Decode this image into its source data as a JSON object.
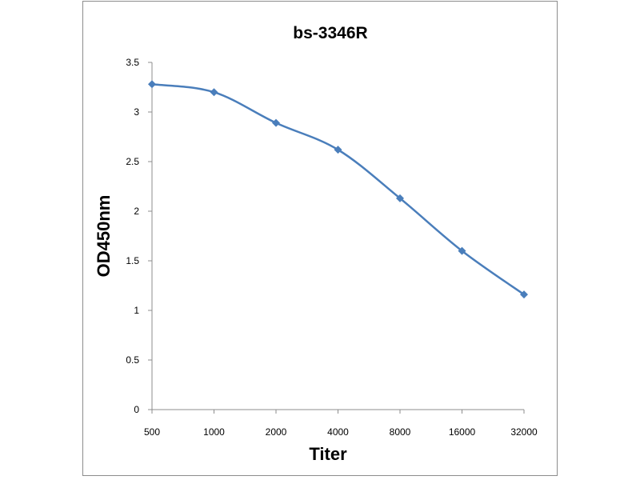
{
  "chart_data": {
    "type": "line",
    "title": "bs-3346R",
    "xlabel": "Titer",
    "ylabel": "OD450nm",
    "categories": [
      "500",
      "1000",
      "2000",
      "4000",
      "8000",
      "16000",
      "32000"
    ],
    "series": [
      {
        "values": [
          3.28,
          3.2,
          2.89,
          2.62,
          2.13,
          1.6,
          1.16
        ]
      }
    ],
    "ylim": [
      0,
      3.5
    ],
    "yticks": [
      "0",
      "0.5",
      "1",
      "1.5",
      "2",
      "2.5",
      "3",
      "3.5"
    ],
    "grid": false,
    "legend": "none",
    "line_color": "#4a7ebb",
    "marker": "diamond"
  }
}
